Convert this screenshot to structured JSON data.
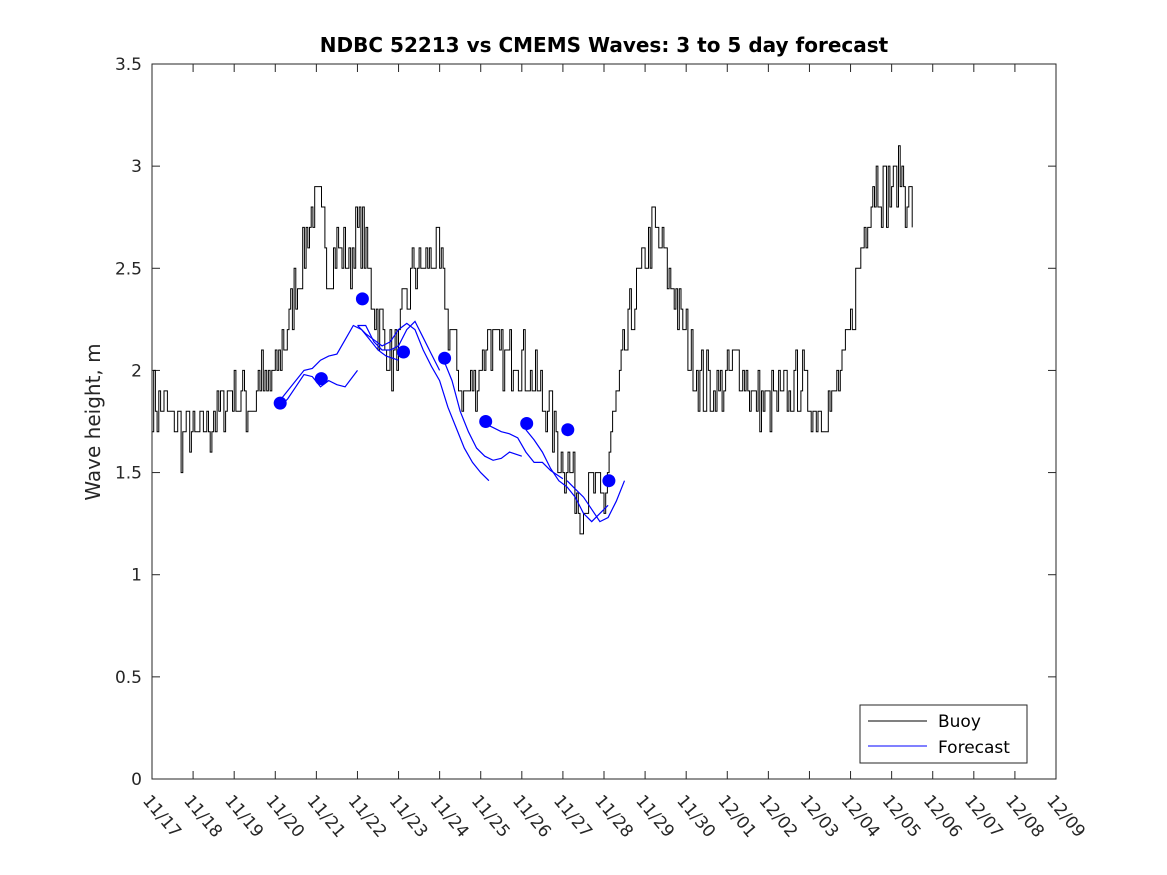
{
  "chart_data": {
    "type": "line",
    "title": "NDBC 52213 vs CMEMS Waves: 3 to 5 day forecast",
    "xlabel": "",
    "ylabel": "Wave height, m",
    "xlim": [
      0,
      22
    ],
    "ylim": [
      0,
      3.5
    ],
    "x_tick_labels": [
      "11/17",
      "11/18",
      "11/19",
      "11/20",
      "11/21",
      "11/22",
      "11/23",
      "11/24",
      "11/25",
      "11/26",
      "11/27",
      "11/28",
      "11/29",
      "11/30",
      "12/01",
      "12/02",
      "12/03",
      "12/04",
      "12/05",
      "12/06",
      "12/07",
      "12/08",
      "12/09"
    ],
    "y_ticks": [
      0,
      0.5,
      1,
      1.5,
      2,
      2.5,
      3,
      3.5
    ],
    "y_tick_labels": [
      "0",
      "0.5",
      "1",
      "1.5",
      "2",
      "2.5",
      "3",
      "3.5"
    ],
    "legend": {
      "position": "bottom-right",
      "entries": [
        "Buoy",
        "Forecast"
      ]
    },
    "colors": {
      "buoy": "#000000",
      "forecast": "#0000ff"
    },
    "buoy_anchors": [
      [
        0.0,
        1.85
      ],
      [
        0.3,
        1.8
      ],
      [
        0.5,
        1.75
      ],
      [
        0.7,
        1.68
      ],
      [
        1.0,
        1.68
      ],
      [
        1.3,
        1.72
      ],
      [
        1.6,
        1.8
      ],
      [
        1.9,
        1.9
      ],
      [
        2.1,
        1.88
      ],
      [
        2.4,
        1.82
      ],
      [
        2.6,
        1.95
      ],
      [
        2.8,
        1.9
      ],
      [
        3.0,
        2.0
      ],
      [
        3.2,
        2.15
      ],
      [
        3.4,
        2.3
      ],
      [
        3.6,
        2.55
      ],
      [
        3.8,
        2.7
      ],
      [
        4.0,
        2.82
      ],
      [
        4.15,
        2.7
      ],
      [
        4.3,
        2.5
      ],
      [
        4.5,
        2.6
      ],
      [
        4.8,
        2.5
      ],
      [
        5.0,
        2.7
      ],
      [
        5.2,
        2.6
      ],
      [
        5.4,
        2.3
      ],
      [
        5.6,
        2.2
      ],
      [
        5.8,
        2.05
      ],
      [
        6.0,
        2.1
      ],
      [
        6.2,
        2.35
      ],
      [
        6.4,
        2.5
      ],
      [
        6.6,
        2.5
      ],
      [
        6.8,
        2.55
      ],
      [
        7.0,
        2.5
      ],
      [
        7.2,
        2.25
      ],
      [
        7.4,
        2.0
      ],
      [
        7.6,
        1.85
      ],
      [
        7.8,
        1.95
      ],
      [
        8.0,
        2.05
      ],
      [
        8.2,
        2.2
      ],
      [
        8.4,
        2.1
      ],
      [
        8.6,
        2.05
      ],
      [
        8.8,
        2.1
      ],
      [
        9.0,
        2.05
      ],
      [
        9.2,
        1.95
      ],
      [
        9.4,
        1.9
      ],
      [
        9.6,
        1.85
      ],
      [
        9.8,
        1.7
      ],
      [
        10.0,
        1.55
      ],
      [
        10.2,
        1.5
      ],
      [
        10.4,
        1.35
      ],
      [
        10.6,
        1.4
      ],
      [
        10.8,
        1.4
      ],
      [
        11.0,
        1.35
      ],
      [
        11.2,
        1.7
      ],
      [
        11.4,
        1.95
      ],
      [
        11.6,
        2.2
      ],
      [
        11.8,
        2.4
      ],
      [
        12.0,
        2.55
      ],
      [
        12.2,
        2.7
      ],
      [
        12.4,
        2.6
      ],
      [
        12.6,
        2.45
      ],
      [
        12.8,
        2.3
      ],
      [
        13.0,
        2.15
      ],
      [
        13.2,
        2.0
      ],
      [
        13.4,
        1.95
      ],
      [
        13.6,
        1.9
      ],
      [
        13.8,
        1.9
      ],
      [
        14.0,
        1.95
      ],
      [
        14.2,
        2.05
      ],
      [
        14.4,
        2.0
      ],
      [
        14.6,
        1.85
      ],
      [
        14.8,
        1.85
      ],
      [
        15.0,
        1.85
      ],
      [
        15.2,
        1.85
      ],
      [
        15.4,
        1.85
      ],
      [
        15.6,
        1.9
      ],
      [
        15.8,
        1.95
      ],
      [
        16.0,
        1.85
      ],
      [
        16.2,
        1.82
      ],
      [
        16.4,
        1.8
      ],
      [
        16.6,
        1.88
      ],
      [
        16.8,
        2.0
      ],
      [
        17.0,
        2.2
      ],
      [
        17.2,
        2.5
      ],
      [
        17.4,
        2.8
      ],
      [
        17.6,
        2.95
      ],
      [
        17.8,
        2.85
      ],
      [
        18.0,
        2.9
      ],
      [
        18.2,
        2.95
      ],
      [
        18.4,
        2.85
      ],
      [
        18.5,
        2.75
      ]
    ],
    "forecast_segments": [
      [
        [
          3.1,
          1.82
        ],
        [
          3.3,
          1.86
        ],
        [
          3.5,
          1.92
        ],
        [
          3.7,
          1.98
        ],
        [
          3.9,
          1.97
        ],
        [
          4.1,
          1.92
        ],
        [
          4.3,
          1.95
        ],
        [
          4.5,
          1.93
        ],
        [
          4.7,
          1.92
        ],
        [
          5.0,
          2.0
        ]
      ],
      [
        [
          3.1,
          1.85
        ],
        [
          3.3,
          1.9
        ],
        [
          3.5,
          1.95
        ],
        [
          3.7,
          2.0
        ],
        [
          3.9,
          2.01
        ],
        [
          4.1,
          2.05
        ],
        [
          4.3,
          2.07
        ],
        [
          4.5,
          2.08
        ],
        [
          4.7,
          2.15
        ],
        [
          4.9,
          2.22
        ],
        [
          5.1,
          2.2
        ],
        [
          5.3,
          2.15
        ],
        [
          5.5,
          2.1
        ],
        [
          5.7,
          2.07
        ],
        [
          6.0,
          2.05
        ]
      ],
      [
        [
          5.0,
          2.22
        ],
        [
          5.2,
          2.22
        ],
        [
          5.4,
          2.14
        ],
        [
          5.6,
          2.1
        ],
        [
          5.8,
          2.1
        ],
        [
          6.0,
          2.12
        ],
        [
          6.2,
          2.2
        ],
        [
          6.4,
          2.24
        ],
        [
          6.6,
          2.16
        ],
        [
          6.8,
          2.08
        ],
        [
          7.0,
          2.0
        ]
      ],
      [
        [
          5.0,
          2.22
        ],
        [
          5.2,
          2.18
        ],
        [
          5.4,
          2.15
        ],
        [
          5.6,
          2.12
        ],
        [
          5.8,
          2.14
        ],
        [
          6.0,
          2.2
        ],
        [
          6.2,
          2.23
        ],
        [
          6.4,
          2.2
        ],
        [
          6.6,
          2.1
        ],
        [
          6.8,
          2.02
        ],
        [
          7.0,
          1.95
        ],
        [
          7.2,
          1.82
        ],
        [
          7.4,
          1.72
        ],
        [
          7.6,
          1.62
        ],
        [
          7.8,
          1.55
        ],
        [
          8.0,
          1.5
        ],
        [
          8.2,
          1.46
        ]
      ],
      [
        [
          7.1,
          2.05
        ],
        [
          7.3,
          1.95
        ],
        [
          7.5,
          1.8
        ],
        [
          7.7,
          1.7
        ],
        [
          7.9,
          1.62
        ],
        [
          8.1,
          1.58
        ],
        [
          8.3,
          1.56
        ],
        [
          8.5,
          1.57
        ],
        [
          8.7,
          1.6
        ],
        [
          9.0,
          1.58
        ]
      ],
      [
        [
          8.1,
          1.74
        ],
        [
          8.3,
          1.72
        ],
        [
          8.5,
          1.7
        ],
        [
          8.7,
          1.69
        ],
        [
          8.9,
          1.67
        ],
        [
          9.1,
          1.6
        ],
        [
          9.3,
          1.55
        ],
        [
          9.5,
          1.55
        ],
        [
          9.7,
          1.51
        ],
        [
          10.0,
          1.47
        ]
      ],
      [
        [
          9.1,
          1.71
        ],
        [
          9.3,
          1.66
        ],
        [
          9.5,
          1.6
        ],
        [
          9.7,
          1.52
        ],
        [
          9.9,
          1.46
        ],
        [
          10.1,
          1.43
        ],
        [
          10.3,
          1.38
        ],
        [
          10.5,
          1.3
        ],
        [
          10.7,
          1.26
        ],
        [
          10.9,
          1.3
        ],
        [
          11.1,
          1.34
        ]
      ],
      [
        [
          10.1,
          1.46
        ],
        [
          10.3,
          1.42
        ],
        [
          10.5,
          1.38
        ],
        [
          10.7,
          1.32
        ],
        [
          10.9,
          1.26
        ],
        [
          11.1,
          1.28
        ],
        [
          11.3,
          1.36
        ],
        [
          11.5,
          1.46
        ]
      ]
    ],
    "forecast_markers": [
      [
        3.12,
        1.84
      ],
      [
        4.12,
        1.96
      ],
      [
        5.12,
        2.35
      ],
      [
        6.12,
        2.09
      ],
      [
        7.12,
        2.06
      ],
      [
        8.12,
        1.75
      ],
      [
        9.12,
        1.74
      ],
      [
        10.12,
        1.71
      ],
      [
        11.12,
        1.46
      ]
    ]
  }
}
